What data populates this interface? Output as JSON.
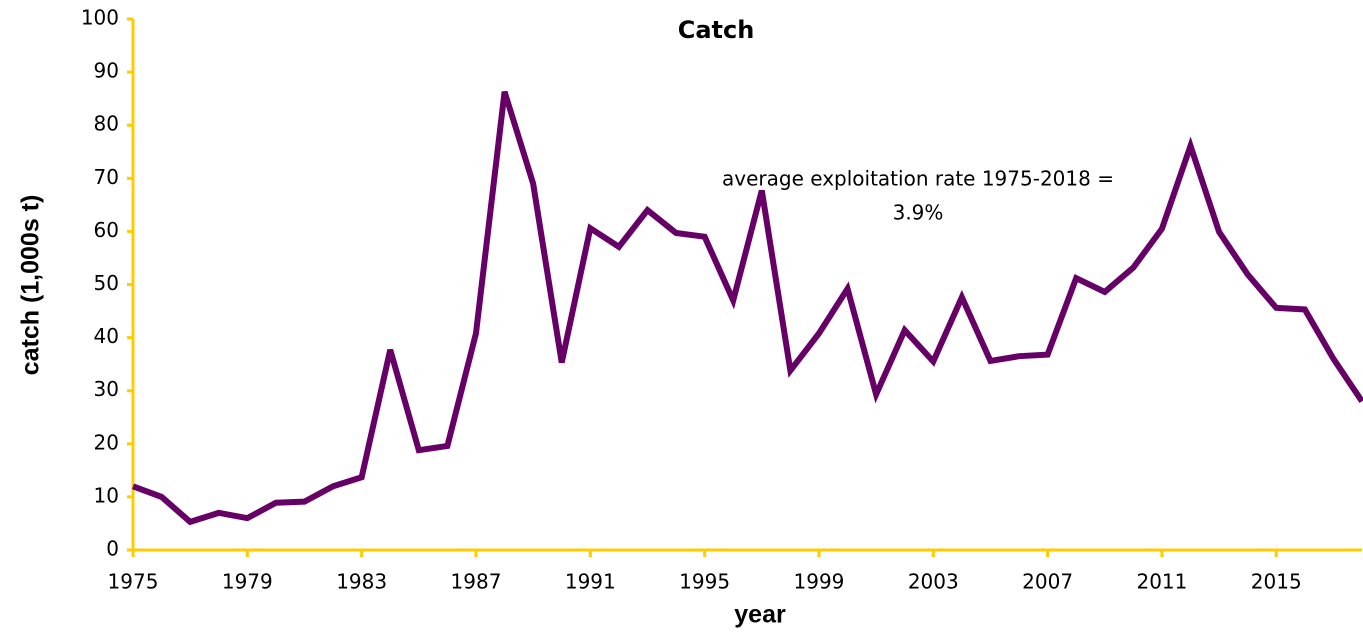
{
  "chart_data": {
    "type": "line",
    "title": "Catch",
    "x_label": "year",
    "y_label": "catch (1,000s t)",
    "annotation": [
      "average exploitation rate 1975-2018 =",
      "3.9%"
    ],
    "x": [
      1975,
      1976,
      1977,
      1978,
      1979,
      1980,
      1981,
      1982,
      1983,
      1984,
      1985,
      1986,
      1987,
      1988,
      1989,
      1990,
      1991,
      1992,
      1993,
      1994,
      1995,
      1996,
      1997,
      1998,
      1999,
      2000,
      2001,
      2002,
      2003,
      2004,
      2005,
      2006,
      2007,
      2008,
      2009,
      2010,
      2011,
      2012,
      2013,
      2014,
      2015,
      2016,
      2017,
      2018
    ],
    "series": [
      {
        "name": "catch",
        "color": "#660066",
        "values": [
          12,
          10,
          5.3,
          7,
          6,
          8.9,
          9.1,
          12,
          13.7,
          37.7,
          18.8,
          19.6,
          40.8,
          86.3,
          69,
          35.3,
          60.6,
          57.1,
          64,
          59.7,
          59,
          47,
          67.7,
          33.8,
          40.8,
          49.2,
          29.3,
          41.4,
          35.5,
          47.6,
          35.6,
          36.5,
          36.8,
          51.2,
          48.6,
          53.2,
          60.5,
          76.1,
          59.9,
          51.9,
          45.6,
          45.3,
          36,
          28
        ]
      }
    ],
    "xlim": [
      1975,
      2018
    ],
    "ylim": [
      0,
      100
    ],
    "xticks": [
      1975,
      1979,
      1983,
      1987,
      1991,
      1995,
      1999,
      2003,
      2007,
      2011,
      2015
    ],
    "yticks": [
      0,
      10,
      20,
      30,
      40,
      50,
      60,
      70,
      80,
      90,
      100
    ],
    "axis_color": "#ffcc00"
  }
}
